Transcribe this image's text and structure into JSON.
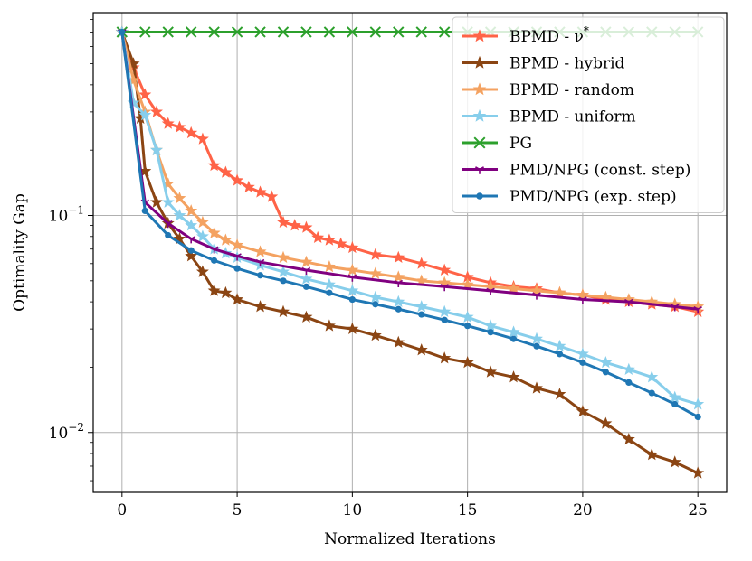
{
  "chart_data": {
    "type": "line",
    "xlabel": "Normalized Iterations",
    "ylabel": "Optimality Gap",
    "yscale": "log",
    "xlim": [
      -1.25,
      26.25
    ],
    "ylim": [
      0.0053,
      0.86
    ],
    "xticks": [
      {
        "value": 0,
        "label": "0"
      },
      {
        "value": 5,
        "label": "5"
      },
      {
        "value": 10,
        "label": "10"
      },
      {
        "value": 15,
        "label": "15"
      },
      {
        "value": 20,
        "label": "20"
      },
      {
        "value": 25,
        "label": "25"
      }
    ],
    "yticks": [
      {
        "value": 0.1,
        "base": "10",
        "exp": "−1"
      },
      {
        "value": 0.01,
        "base": "10",
        "exp": "−2"
      }
    ],
    "grid": true,
    "legend_position": "top-right",
    "series": [
      {
        "name": "BPMD - ν*",
        "name_base": "BPMD - ν",
        "name_sup": "*",
        "color": "#ff6347",
        "marker": "star",
        "linewidth": 3,
        "x": [
          0,
          0.5,
          1,
          1.5,
          2,
          2.5,
          3,
          3.5,
          4,
          4.5,
          5,
          5.5,
          6,
          6.5,
          7,
          7.5,
          8,
          8.5,
          9,
          9.5,
          10,
          11,
          12,
          13,
          14,
          15,
          16,
          17,
          18,
          19,
          20,
          21,
          22,
          23,
          24,
          25
        ],
        "y": [
          0.7,
          0.48,
          0.36,
          0.3,
          0.265,
          0.255,
          0.24,
          0.225,
          0.17,
          0.158,
          0.145,
          0.135,
          0.128,
          0.122,
          0.093,
          0.09,
          0.088,
          0.079,
          0.077,
          0.074,
          0.071,
          0.066,
          0.064,
          0.06,
          0.056,
          0.052,
          0.049,
          0.047,
          0.046,
          0.044,
          0.043,
          0.041,
          0.04,
          0.039,
          0.038,
          0.036
        ]
      },
      {
        "name": "BPMD - hybrid",
        "color": "#8b4513",
        "marker": "star",
        "linewidth": 3,
        "x": [
          0,
          0.5,
          0.8,
          1,
          1.5,
          2,
          2.5,
          3,
          3.5,
          4,
          4.5,
          5,
          6,
          7,
          8,
          9,
          10,
          11,
          12,
          13,
          14,
          15,
          16,
          17,
          18,
          19,
          20,
          21,
          22,
          23,
          24,
          25
        ],
        "y": [
          0.7,
          0.5,
          0.28,
          0.16,
          0.115,
          0.092,
          0.078,
          0.065,
          0.055,
          0.045,
          0.044,
          0.041,
          0.038,
          0.036,
          0.034,
          0.031,
          0.03,
          0.028,
          0.026,
          0.024,
          0.022,
          0.021,
          0.019,
          0.018,
          0.016,
          0.015,
          0.0125,
          0.011,
          0.0093,
          0.0079,
          0.0073,
          0.0065
        ]
      },
      {
        "name": "BPMD - random",
        "color": "#f4a261",
        "marker": "star",
        "linewidth": 3,
        "x": [
          0,
          0.5,
          1,
          1.5,
          2,
          2.5,
          3,
          3.5,
          4,
          4.5,
          5,
          6,
          7,
          8,
          9,
          10,
          11,
          12,
          13,
          14,
          15,
          16,
          17,
          18,
          19,
          20,
          21,
          22,
          23,
          24,
          25
        ],
        "y": [
          0.7,
          0.42,
          0.3,
          0.2,
          0.14,
          0.12,
          0.105,
          0.093,
          0.083,
          0.077,
          0.073,
          0.068,
          0.064,
          0.061,
          0.058,
          0.056,
          0.054,
          0.052,
          0.05,
          0.049,
          0.048,
          0.047,
          0.046,
          0.045,
          0.044,
          0.043,
          0.042,
          0.041,
          0.04,
          0.039,
          0.038
        ]
      },
      {
        "name": "BPMD - uniform",
        "color": "#87ceeb",
        "marker": "star",
        "linewidth": 3,
        "x": [
          0,
          0.5,
          1,
          1.5,
          2,
          2.5,
          3,
          3.5,
          4,
          4.5,
          5,
          6,
          7,
          8,
          9,
          10,
          11,
          12,
          13,
          14,
          15,
          16,
          17,
          18,
          19,
          20,
          21,
          22,
          23,
          24,
          25
        ],
        "y": [
          0.7,
          0.33,
          0.29,
          0.2,
          0.115,
          0.1,
          0.09,
          0.08,
          0.07,
          0.067,
          0.064,
          0.059,
          0.055,
          0.051,
          0.048,
          0.045,
          0.042,
          0.04,
          0.038,
          0.036,
          0.034,
          0.031,
          0.029,
          0.027,
          0.025,
          0.023,
          0.021,
          0.0195,
          0.018,
          0.0145,
          0.0135
        ]
      },
      {
        "name": "PG",
        "color": "#2ca02c",
        "marker": "x",
        "linewidth": 3,
        "x": [
          0,
          1,
          2,
          3,
          4,
          5,
          6,
          7,
          8,
          9,
          10,
          11,
          12,
          13,
          14,
          15,
          16,
          17,
          18,
          19,
          20,
          21,
          22,
          23,
          24,
          25
        ],
        "y": [
          0.7,
          0.7,
          0.7,
          0.7,
          0.7,
          0.7,
          0.7,
          0.7,
          0.7,
          0.7,
          0.7,
          0.7,
          0.7,
          0.7,
          0.7,
          0.7,
          0.7,
          0.7,
          0.7,
          0.7,
          0.7,
          0.7,
          0.7,
          0.7,
          0.7,
          0.7
        ]
      },
      {
        "name": "PMD/NPG (const. step)",
        "color": "#800080",
        "marker": "tri",
        "linewidth": 3,
        "x": [
          0,
          1,
          2,
          3,
          4,
          5,
          6,
          8,
          10,
          12,
          14,
          16,
          18,
          20,
          22,
          24,
          25
        ],
        "y": [
          0.7,
          0.115,
          0.092,
          0.078,
          0.07,
          0.065,
          0.061,
          0.056,
          0.052,
          0.049,
          0.047,
          0.045,
          0.043,
          0.041,
          0.04,
          0.038,
          0.037
        ]
      },
      {
        "name": "PMD/NPG (exp. step)",
        "color": "#1f77b4",
        "marker": "circle",
        "linewidth": 3,
        "x": [
          0,
          1,
          2,
          3,
          4,
          5,
          6,
          7,
          8,
          9,
          10,
          11,
          12,
          13,
          14,
          15,
          16,
          17,
          18,
          19,
          20,
          21,
          22,
          23,
          24,
          25
        ],
        "y": [
          0.7,
          0.105,
          0.081,
          0.069,
          0.062,
          0.057,
          0.053,
          0.05,
          0.047,
          0.044,
          0.041,
          0.039,
          0.037,
          0.035,
          0.033,
          0.031,
          0.029,
          0.027,
          0.025,
          0.023,
          0.021,
          0.019,
          0.017,
          0.0152,
          0.0135,
          0.0118
        ]
      }
    ]
  }
}
